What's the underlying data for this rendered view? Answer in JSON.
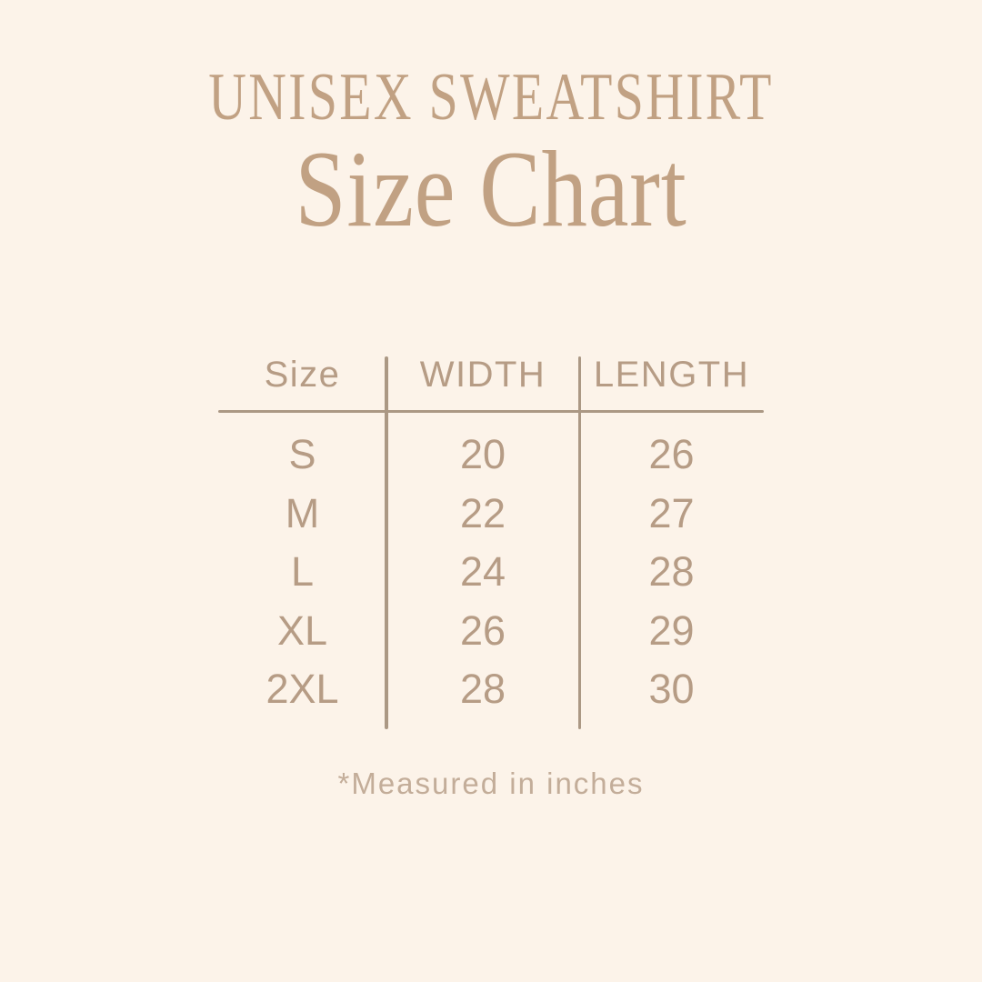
{
  "theme": {
    "background": "#fcf3e9",
    "title_color": "#c1a183",
    "table_text_color": "#b69c85",
    "line_color": "#ab9884",
    "footnote_color": "#c3ad99"
  },
  "chart_data": {
    "type": "table",
    "subtitle": "UNISEX SWEATSHIRT",
    "title": "Size Chart",
    "columns": [
      "Size",
      "WIDTH",
      "LENGTH"
    ],
    "rows": [
      [
        "S",
        20,
        26
      ],
      [
        "M",
        22,
        27
      ],
      [
        "L",
        24,
        28
      ],
      [
        "XL",
        26,
        29
      ],
      [
        "2XL",
        28,
        30
      ]
    ],
    "footnote": "*Measured in inches"
  }
}
